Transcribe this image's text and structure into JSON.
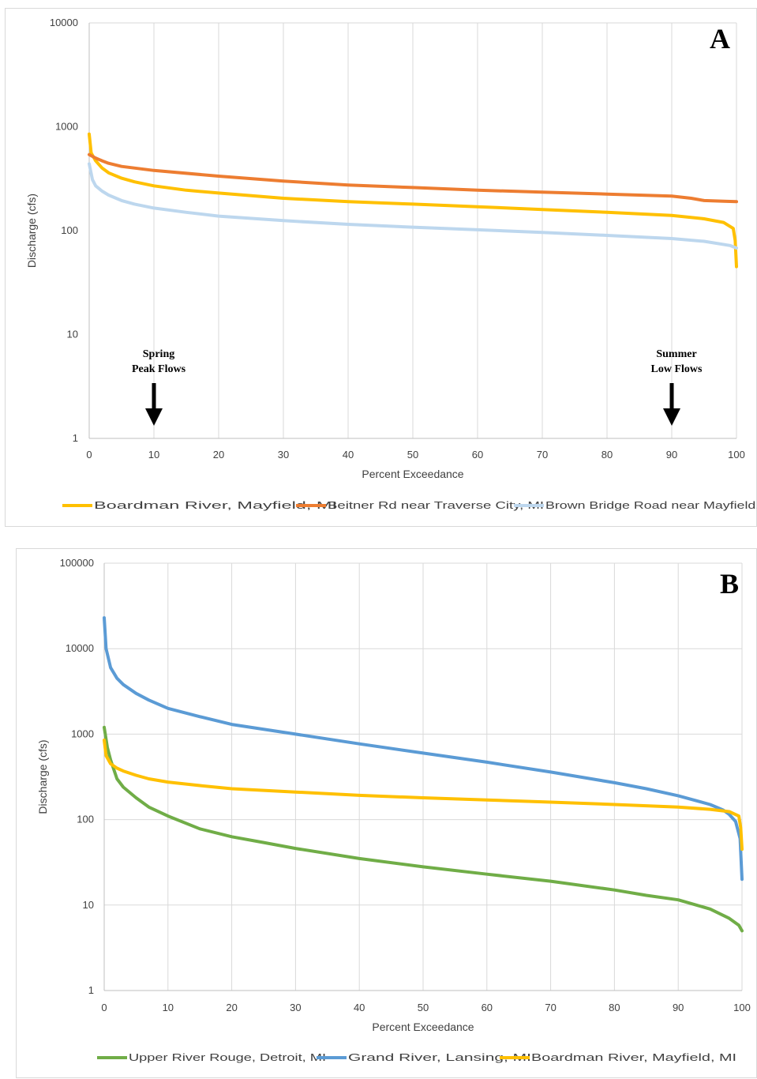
{
  "chart_data": [
    {
      "type": "line",
      "panel_label": "A",
      "xlabel": "Percent Exceedance",
      "ylabel": "Discharge (cfs)",
      "xlim": [
        0,
        100
      ],
      "ylim": [
        1,
        10000
      ],
      "y_scale": "log",
      "x_ticks": [
        "0",
        "10",
        "20",
        "30",
        "40",
        "50",
        "60",
        "70",
        "80",
        "90",
        "100"
      ],
      "y_ticks": [
        "1",
        "10",
        "100",
        "1000",
        "10000"
      ],
      "grid": "vertical",
      "legend_position": "bottom",
      "annotations": [
        {
          "text_lines": [
            "Spring",
            "Peak Flows"
          ],
          "x": 10
        },
        {
          "text_lines": [
            "Summer",
            "Low Flows"
          ],
          "x": 90
        }
      ],
      "series": [
        {
          "name": "Boardman River, Mayfield, MI",
          "color": "#FFC000",
          "points": [
            [
              0,
              850
            ],
            [
              0.3,
              560
            ],
            [
              1,
              470
            ],
            [
              2,
              400
            ],
            [
              3,
              360
            ],
            [
              5,
              320
            ],
            [
              7,
              295
            ],
            [
              10,
              270
            ],
            [
              15,
              245
            ],
            [
              20,
              230
            ],
            [
              30,
              205
            ],
            [
              40,
              190
            ],
            [
              50,
              180
            ],
            [
              60,
              170
            ],
            [
              70,
              160
            ],
            [
              80,
              150
            ],
            [
              90,
              140
            ],
            [
              95,
              130
            ],
            [
              98,
              120
            ],
            [
              99.5,
              105
            ],
            [
              99.8,
              80
            ],
            [
              100,
              45
            ]
          ]
        },
        {
          "name": "Beitner Rd near Traverse City, MI",
          "color": "#ED7D31",
          "points": [
            [
              0,
              540
            ],
            [
              1,
              500
            ],
            [
              2,
              470
            ],
            [
              3,
              445
            ],
            [
              5,
              415
            ],
            [
              10,
              380
            ],
            [
              20,
              335
            ],
            [
              30,
              300
            ],
            [
              40,
              275
            ],
            [
              50,
              260
            ],
            [
              60,
              245
            ],
            [
              70,
              235
            ],
            [
              80,
              225
            ],
            [
              90,
              215
            ],
            [
              93,
              205
            ],
            [
              95,
              195
            ],
            [
              98,
              192
            ],
            [
              100,
              190
            ]
          ]
        },
        {
          "name": "Brown Bridge Road near Mayfield, MI",
          "color": "#BDD7EE",
          "points": [
            [
              0,
              440
            ],
            [
              0.5,
              310
            ],
            [
              1,
              270
            ],
            [
              2,
              240
            ],
            [
              3,
              220
            ],
            [
              5,
              195
            ],
            [
              7,
              180
            ],
            [
              10,
              165
            ],
            [
              15,
              150
            ],
            [
              20,
              138
            ],
            [
              30,
              125
            ],
            [
              40,
              115
            ],
            [
              50,
              108
            ],
            [
              60,
              102
            ],
            [
              70,
              96
            ],
            [
              80,
              90
            ],
            [
              90,
              84
            ],
            [
              95,
              79
            ],
            [
              99,
              72
            ],
            [
              100,
              68
            ]
          ]
        }
      ]
    },
    {
      "type": "line",
      "panel_label": "B",
      "xlabel": "Percent Exceedance",
      "ylabel": "Discharge (cfs)",
      "xlim": [
        0,
        100
      ],
      "ylim": [
        1,
        100000
      ],
      "y_scale": "log",
      "x_ticks": [
        "0",
        "10",
        "20",
        "30",
        "40",
        "50",
        "60",
        "70",
        "80",
        "90",
        "100"
      ],
      "y_ticks": [
        "1",
        "10",
        "100",
        "1000",
        "10000",
        "100000"
      ],
      "grid": "both",
      "legend_position": "bottom",
      "series": [
        {
          "name": "Upper River Rouge, Detroit, MI",
          "color": "#70AD47",
          "points": [
            [
              0,
              1200
            ],
            [
              0.5,
              700
            ],
            [
              1,
              500
            ],
            [
              2,
              300
            ],
            [
              3,
              240
            ],
            [
              5,
              180
            ],
            [
              7,
              140
            ],
            [
              10,
              110
            ],
            [
              15,
              78
            ],
            [
              20,
              63
            ],
            [
              25,
              54
            ],
            [
              30,
              46
            ],
            [
              40,
              35
            ],
            [
              50,
              28
            ],
            [
              60,
              23
            ],
            [
              70,
              19
            ],
            [
              80,
              15
            ],
            [
              85,
              13
            ],
            [
              90,
              11.5
            ],
            [
              95,
              9
            ],
            [
              98,
              7
            ],
            [
              99.5,
              5.8
            ],
            [
              100,
              5
            ]
          ]
        },
        {
          "name": "Grand River, Lansing, MI",
          "color": "#5B9BD5",
          "points": [
            [
              0,
              23000
            ],
            [
              0.3,
              10000
            ],
            [
              1,
              6000
            ],
            [
              2,
              4500
            ],
            [
              3,
              3800
            ],
            [
              5,
              3000
            ],
            [
              7,
              2500
            ],
            [
              10,
              2000
            ],
            [
              15,
              1600
            ],
            [
              20,
              1300
            ],
            [
              30,
              1000
            ],
            [
              40,
              770
            ],
            [
              50,
              600
            ],
            [
              60,
              470
            ],
            [
              70,
              360
            ],
            [
              80,
              270
            ],
            [
              85,
              230
            ],
            [
              90,
              190
            ],
            [
              95,
              150
            ],
            [
              97,
              130
            ],
            [
              98,
              115
            ],
            [
              99,
              95
            ],
            [
              99.7,
              60
            ],
            [
              100,
              20
            ]
          ]
        },
        {
          "name": "Boardman River, Mayfield, MI",
          "color": "#FFC000",
          "points": [
            [
              0,
              850
            ],
            [
              0.3,
              560
            ],
            [
              1,
              450
            ],
            [
              2,
              400
            ],
            [
              3,
              370
            ],
            [
              5,
              330
            ],
            [
              7,
              300
            ],
            [
              10,
              275
            ],
            [
              15,
              250
            ],
            [
              20,
              230
            ],
            [
              30,
              210
            ],
            [
              40,
              192
            ],
            [
              50,
              180
            ],
            [
              60,
              170
            ],
            [
              70,
              160
            ],
            [
              80,
              150
            ],
            [
              90,
              140
            ],
            [
              95,
              132
            ],
            [
              98,
              124
            ],
            [
              99.5,
              110
            ],
            [
              99.8,
              80
            ],
            [
              100,
              45
            ]
          ]
        }
      ]
    }
  ]
}
